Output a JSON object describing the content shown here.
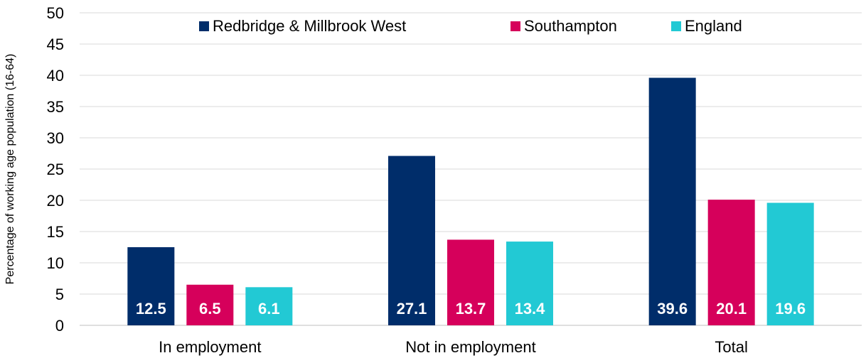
{
  "chart_data": {
    "type": "bar",
    "categories": [
      "In employment",
      "Not in employment",
      "Total"
    ],
    "series": [
      {
        "name": "Redbridge & Millbrook West",
        "values": [
          12.5,
          27.1,
          39.6
        ],
        "color": "#002d6a"
      },
      {
        "name": "Southampton",
        "values": [
          6.5,
          13.7,
          20.1
        ],
        "color": "#d6005b"
      },
      {
        "name": "England",
        "values": [
          6.1,
          13.4,
          19.6
        ],
        "color": "#22c9d4"
      }
    ],
    "title": "",
    "xlabel": "",
    "ylabel": "Percentage of working age population (16-64)",
    "ylim": [
      0,
      50
    ],
    "yticks": [
      0,
      5,
      10,
      15,
      20,
      25,
      30,
      35,
      40,
      45,
      50
    ],
    "grid": true,
    "legend_position": "top",
    "data_labels": true
  }
}
